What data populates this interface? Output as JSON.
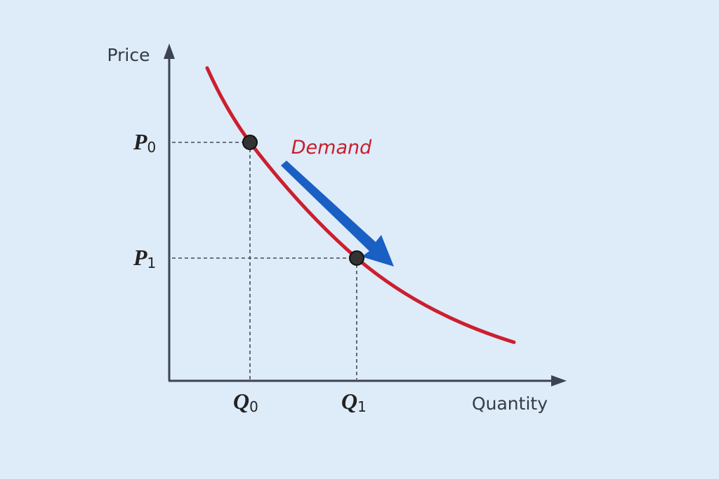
{
  "y_axis": {
    "label": "Price"
  },
  "x_axis": {
    "label": "Quantity"
  },
  "curve": {
    "label": "Demand"
  },
  "points": [
    {
      "price": {
        "symbol": "P",
        "sub": "0"
      },
      "quantity": {
        "symbol": "Q",
        "sub": "0"
      }
    },
    {
      "price": {
        "symbol": "P",
        "sub": "1"
      },
      "quantity": {
        "symbol": "Q",
        "sub": "1"
      }
    }
  ]
}
